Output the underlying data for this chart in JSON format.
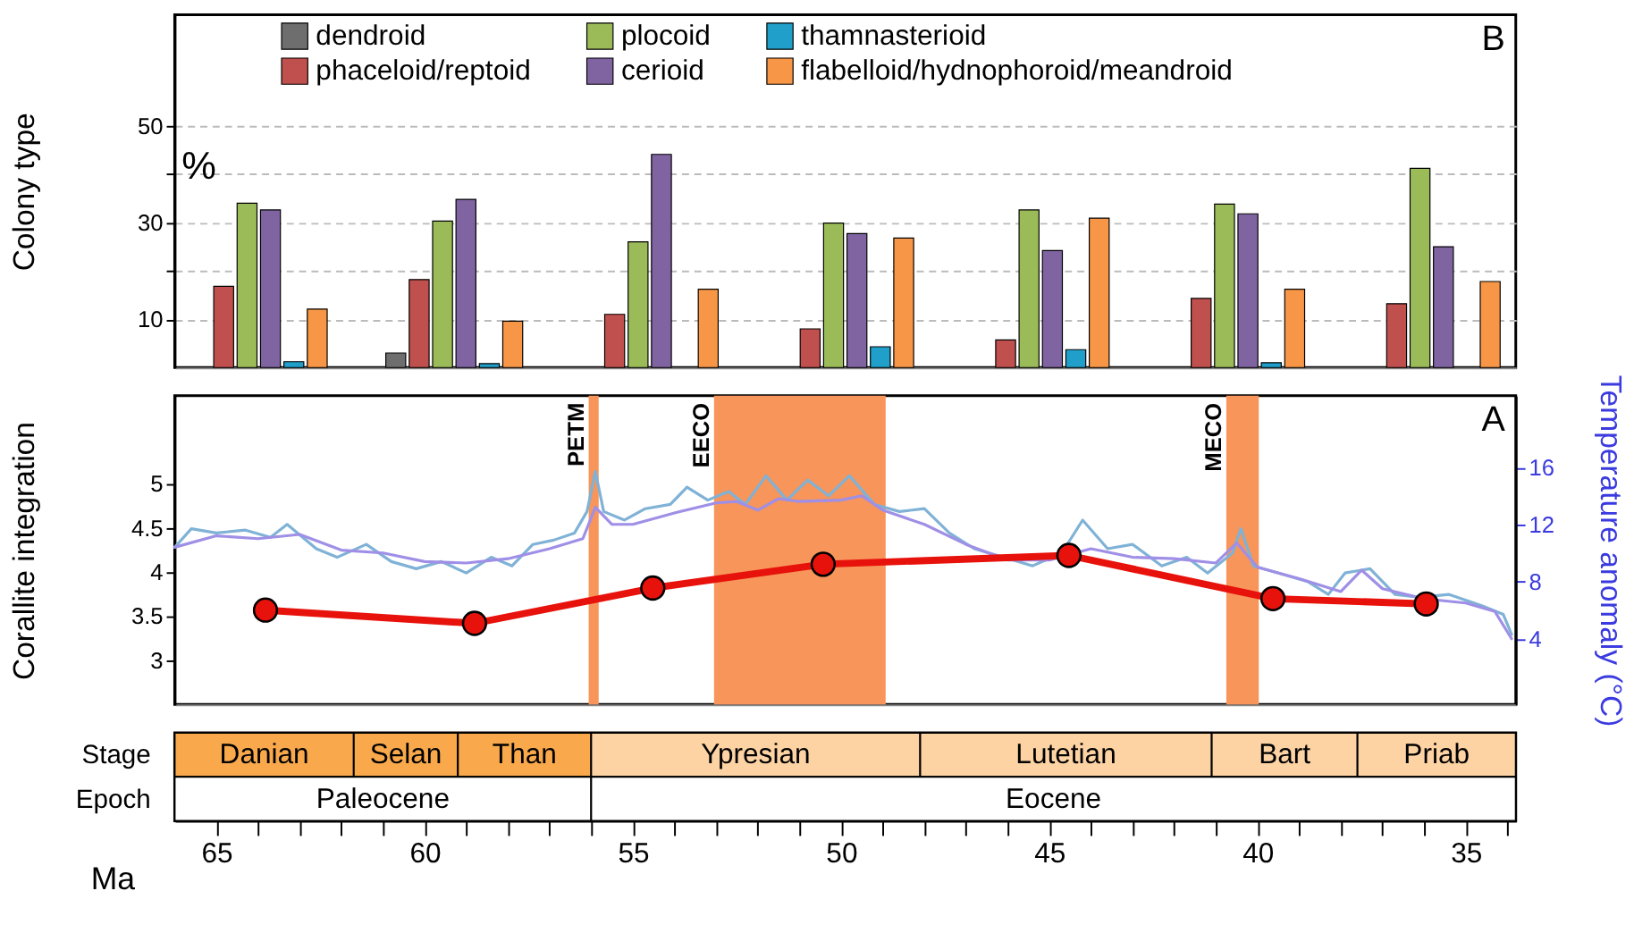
{
  "chart_data": [
    {
      "type": "bar",
      "ylabel": "Colony type",
      "categories": [
        null,
        null,
        null,
        null,
        null,
        null,
        null
      ],
      "series": [
        {
          "name": "dendroid",
          "color": "#6e6e6e",
          "values": [
            null,
            3.0,
            null,
            null,
            null,
            null,
            null
          ]
        },
        {
          "name": "phaceloid/reptoid",
          "color": "#c0504d",
          "values": [
            16.8,
            18.2,
            11.0,
            8.0,
            5.7,
            14.3,
            13.2
          ]
        },
        {
          "name": "plocoid",
          "color": "#9bbb59",
          "values": [
            34.0,
            30.3,
            26.0,
            29.9,
            32.6,
            33.8,
            41.2
          ]
        },
        {
          "name": "cerioid",
          "color": "#8064a2",
          "values": [
            32.6,
            34.8,
            44.1,
            27.7,
            24.2,
            31.8,
            25.0
          ]
        },
        {
          "name": "thamnasterioid",
          "color": "#1f9fc9",
          "values": [
            1.2,
            0.8,
            null,
            4.3,
            3.7,
            1.0,
            null
          ]
        },
        {
          "name": "flabelloid/hydnophoroid/meandroid",
          "color": "#f79646",
          "values": [
            12.1,
            9.6,
            16.2,
            26.8,
            30.9,
            16.2,
            17.8
          ]
        }
      ],
      "ylim": [
        0,
        73
      ],
      "yticks": [
        10,
        {
          "value": 20,
          "label": null
        },
        30,
        {
          "value": 40,
          "label": null
        },
        50
      ],
      "grid": "y",
      "legend": "top",
      "tick_labels": "y",
      "annotations": [
        "%",
        "B"
      ]
    },
    {
      "type": "line",
      "ylabel": "Corallite integration",
      "y2label": "Temperature anomaly (°C)",
      "x": [
        63.82,
        58.8,
        54.52,
        50.43,
        44.53,
        39.63,
        35.95
      ],
      "tick_labels": "y",
      "series": [
        {
          "color": "#7fb2d6",
          "axis": "y2",
          "x": [
            66.0,
            65.6,
            65.0,
            64.3,
            63.7,
            63.3,
            62.6,
            62.1,
            61.4,
            60.8,
            60.2,
            59.6,
            59.0,
            58.4,
            57.9,
            57.4,
            56.9,
            56.4,
            56.1,
            55.9,
            55.7,
            55.2,
            54.7,
            54.1,
            53.7,
            53.2,
            52.7,
            52.3,
            51.8,
            51.3,
            50.8,
            50.3,
            49.8,
            49.2,
            48.6,
            48.0,
            47.4,
            46.8,
            46.1,
            45.4,
            44.7,
            44.2,
            43.6,
            43.0,
            42.3,
            41.7,
            41.2,
            40.6,
            40.4,
            40.1,
            39.5,
            38.8,
            38.3,
            37.9,
            37.3,
            36.7,
            36.1,
            35.4,
            34.6,
            34.1,
            33.9
          ],
          "values": [
            10.4,
            11.7,
            11.4,
            11.6,
            11.1,
            12.0,
            10.3,
            9.7,
            10.6,
            9.4,
            8.9,
            9.4,
            8.6,
            9.7,
            9.1,
            10.6,
            10.9,
            11.4,
            12.9,
            15.7,
            12.9,
            12.3,
            13.1,
            13.4,
            14.6,
            13.7,
            14.3,
            13.4,
            15.4,
            13.7,
            15.1,
            14.0,
            15.4,
            13.4,
            12.9,
            13.1,
            11.4,
            10.3,
            9.7,
            9.1,
            10.0,
            12.3,
            10.3,
            10.6,
            9.1,
            9.7,
            8.6,
            10.0,
            11.7,
            9.1,
            8.6,
            8.0,
            7.1,
            8.6,
            8.9,
            7.1,
            6.9,
            7.1,
            6.3,
            5.7,
            4.3
          ]
        },
        {
          "color": "#9f8fe6",
          "axis": "y2",
          "x": [
            66.0,
            65.0,
            64.0,
            63.0,
            62.0,
            61.0,
            60.0,
            59.0,
            58.0,
            57.0,
            56.2,
            55.9,
            55.5,
            55.0,
            54.0,
            53.0,
            52.5,
            52.0,
            51.5,
            51.0,
            50.0,
            49.5,
            49.0,
            48.0,
            47.0,
            46.0,
            45.0,
            44.0,
            43.0,
            42.0,
            41.0,
            40.5,
            40.0,
            39.0,
            38.0,
            37.5,
            37.0,
            36.0,
            35.0,
            34.3,
            33.9
          ],
          "values": [
            10.4,
            11.2,
            11.0,
            11.3,
            10.2,
            10.0,
            9.4,
            9.3,
            9.6,
            10.3,
            11.0,
            13.2,
            12.0,
            12.0,
            12.8,
            13.5,
            13.6,
            13.0,
            13.8,
            13.6,
            13.7,
            14.0,
            13.0,
            12.0,
            10.6,
            9.5,
            9.5,
            10.3,
            9.7,
            9.6,
            9.3,
            10.7,
            9.0,
            8.2,
            7.3,
            8.8,
            7.5,
            6.8,
            6.5,
            5.9,
            4.0
          ]
        },
        {
          "color": "#e8120c",
          "values": [
            3.57,
            3.42,
            3.82,
            4.09,
            4.19,
            3.7,
            3.64
          ],
          "marker": "circle",
          "line_style": "solid"
        }
      ],
      "xlim": [
        66,
        33.8
      ],
      "ylim": [
        2.5,
        6.0
      ],
      "yticks": [
        3,
        3.5,
        4,
        4.5,
        5
      ],
      "y2lim": [
        -0.6,
        21.0
      ],
      "y2ticks": [
        4,
        8,
        12,
        16
      ],
      "bands": [
        {
          "axis": "x",
          "from": 56.06,
          "to": 55.82,
          "label": "PETM",
          "color": "#f7955a"
        },
        {
          "axis": "x",
          "from": 53.05,
          "to": 48.93,
          "label": "EECO",
          "color": "#f7955a"
        },
        {
          "axis": "x",
          "from": 40.75,
          "to": 39.97,
          "label": "MECO",
          "color": "#f7955a"
        }
      ],
      "annotations": [
        "A"
      ]
    },
    {
      "type": "bar",
      "orientation": "horizontal",
      "categories": [
        "Stage",
        "Epoch"
      ],
      "xlabel": "Ma",
      "series": [
        {
          "name": "Danian",
          "color": "#f9a94b",
          "base": [
            61.7,
            null
          ],
          "values": [
            4.3,
            null
          ]
        },
        {
          "name": "Selan",
          "color": "#f9a94b",
          "base": [
            59.2,
            null
          ],
          "values": [
            2.5,
            null
          ]
        },
        {
          "name": "Than",
          "color": "#f9a94b",
          "base": [
            56.0,
            null
          ],
          "values": [
            3.2,
            null
          ]
        },
        {
          "name": "Ypresian",
          "color": "#fdd3a4",
          "base": [
            48.1,
            null
          ],
          "values": [
            7.9,
            null
          ]
        },
        {
          "name": "Lutetian",
          "color": "#fdd3a4",
          "base": [
            41.1,
            null
          ],
          "values": [
            7.0,
            null
          ]
        },
        {
          "name": "Bart",
          "color": "#fdd3a4",
          "base": [
            37.6,
            null
          ],
          "values": [
            3.5,
            null
          ]
        },
        {
          "name": "Priab",
          "color": "#fdd3a4",
          "base": [
            33.8,
            null
          ],
          "values": [
            3.8,
            null
          ]
        },
        {
          "name": "Paleocene",
          "color": "#ffffff",
          "base": [
            null,
            56.0
          ],
          "values": [
            null,
            10.0
          ]
        },
        {
          "name": "Eocene",
          "color": "#ffffff",
          "base": [
            null,
            33.8
          ],
          "values": [
            null,
            22.2
          ]
        }
      ],
      "xlim": [
        66,
        33.8
      ],
      "xticks": [
        65,
        {
          "value": 64,
          "label": null
        },
        {
          "value": 63,
          "label": null
        },
        {
          "value": 62,
          "label": null
        },
        {
          "value": 61,
          "label": null
        },
        60,
        {
          "value": 59,
          "label": null
        },
        {
          "value": 58,
          "label": null
        },
        {
          "value": 57,
          "label": null
        },
        {
          "value": 56,
          "label": null
        },
        55,
        {
          "value": 54,
          "label": null
        },
        {
          "value": 53,
          "label": null
        },
        {
          "value": 52,
          "label": null
        },
        {
          "value": 51,
          "label": null
        },
        50,
        {
          "value": 49,
          "label": null
        },
        {
          "value": 48,
          "label": null
        },
        {
          "value": 47,
          "label": null
        },
        {
          "value": 46,
          "label": null
        },
        45,
        {
          "value": 44,
          "label": null
        },
        {
          "value": 43,
          "label": null
        },
        {
          "value": 42,
          "label": null
        },
        {
          "value": 41,
          "label": null
        },
        40,
        {
          "value": 39,
          "label": null
        },
        {
          "value": 38,
          "label": null
        },
        {
          "value": 37,
          "label": null
        },
        {
          "value": 36,
          "label": null
        },
        35,
        {
          "value": 34,
          "label": null
        }
      ]
    }
  ]
}
